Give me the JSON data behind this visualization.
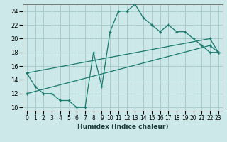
{
  "xlabel": "Humidex (Indice chaleur)",
  "bg_color": "#cce8e8",
  "grid_color": "#aacccc",
  "line_color": "#1a7a6e",
  "xlim": [
    -0.5,
    23.5
  ],
  "ylim": [
    9.5,
    25.0
  ],
  "xticks": [
    0,
    1,
    2,
    3,
    4,
    5,
    6,
    7,
    8,
    9,
    10,
    11,
    12,
    13,
    14,
    15,
    16,
    17,
    18,
    19,
    20,
    21,
    22,
    23
  ],
  "yticks": [
    10,
    12,
    14,
    16,
    18,
    20,
    22,
    24
  ],
  "series1_x": [
    0,
    1,
    2,
    3,
    4,
    5,
    6,
    7,
    8,
    9,
    10,
    11,
    12,
    13,
    14,
    15,
    16,
    17,
    18,
    19,
    20,
    21,
    22,
    23
  ],
  "series1_y": [
    15,
    13,
    12,
    12,
    11,
    11,
    10,
    10,
    18,
    13,
    21,
    24,
    24,
    25,
    23,
    22,
    21,
    22,
    21,
    21,
    20,
    19,
    18,
    18
  ],
  "series2_x": [
    0,
    22,
    23
  ],
  "series2_y": [
    15,
    20,
    18
  ],
  "series3_x": [
    0,
    22,
    23
  ],
  "series3_y": [
    12,
    19,
    18
  ]
}
